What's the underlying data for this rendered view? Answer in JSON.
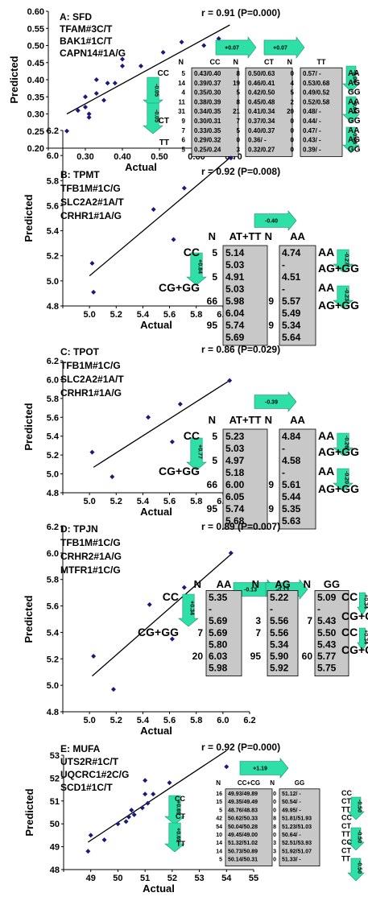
{
  "chart_data": [
    {
      "type": "scatter",
      "annotation": [
        "A: SFD",
        "TFAM#3C/T",
        "BAK1#1C/T",
        "CAPN14#1A/G"
      ],
      "stat": "r = 0.91 (P=0.000)",
      "xlabel": "Actual",
      "ylabel": "Predicted",
      "xlim": [
        0.2,
        0.7
      ],
      "ylim": [
        0.2,
        0.6
      ],
      "xticks": [
        "",
        "0.30",
        "0.40",
        "0.50",
        "0.60",
        "0.70"
      ],
      "yticks": [
        "0.20",
        "0.25",
        "0.30",
        "0.35",
        "0.40",
        "0.45",
        "0.50",
        "0.55",
        "0.60"
      ],
      "x": [
        0.25,
        0.28,
        0.3,
        0.3,
        0.31,
        0.31,
        0.33,
        0.33,
        0.35,
        0.36,
        0.38,
        0.4,
        0.4,
        0.45,
        0.51,
        0.56,
        0.62,
        0.66
      ],
      "y": [
        0.25,
        0.31,
        0.35,
        0.32,
        0.29,
        0.3,
        0.36,
        0.4,
        0.34,
        0.39,
        0.39,
        0.44,
        0.46,
        0.44,
        0.48,
        0.51,
        0.5,
        0.52
      ],
      "fit": [
        [
          0.25,
          0.3
        ],
        [
          0.69,
          0.56
        ]
      ],
      "arrows_top": [
        "+0.07",
        "+0.07"
      ],
      "arrows_left": [
        "-0.05",
        "-0.05"
      ],
      "arrows_right": [
        "-0.04",
        "-0.04",
        "-0.04"
      ],
      "table": {
        "groups": [
          {
            "header": "CC",
            "n": [
              "5",
              "14",
              "4",
              "11",
              "31",
              "9",
              "7",
              "6",
              "5"
            ],
            "values": [
              "0.43/0.40",
              "0.39/0.37",
              "0.35/0.30",
              "0.38/0.39",
              "0.34/0.35",
              "0.30/0.31",
              "0.33/0.35",
              "0.29/0.32",
              "0.25/0.24"
            ]
          },
          {
            "header": "CT",
            "n": [
              "8",
              "19",
              "5",
              "8",
              "21",
              "7",
              "5",
              "0",
              "3"
            ],
            "values": [
              "0.50/0.63",
              "0.46/0.41",
              "0.42/0.50",
              "0.45/0.48",
              "0.41/0.34",
              "0.37/0.34",
              "0.40/0.37",
              "0.36/ -",
              "0.32/0.27"
            ]
          },
          {
            "header": "TT",
            "n": [
              "0",
              "4",
              "5",
              "2",
              "20",
              "0",
              "0",
              "0",
              "0"
            ],
            "values": [
              "0.57/ -",
              "0.53/0.68",
              "0.49/0.52",
              "0.52/0.58",
              "0.48/ -",
              "0.44/ -",
              "0.47/ -",
              "0.43/ -",
              "0.39/ -"
            ]
          }
        ],
        "left_labels": [
          "CC",
          "CT",
          "TT"
        ],
        "right_labels": [
          "AA",
          "AG",
          "GG",
          "AA",
          "AG",
          "GG",
          "AA",
          "AG",
          "GG"
        ]
      }
    },
    {
      "type": "scatter",
      "annotation": [
        "B: TPMT",
        "TFB1M#1C/G",
        "SLC2A2#1A/T",
        "CRHR1#1A/G"
      ],
      "stat": "r = 0.92 (P=0.008)",
      "xlabel": "Actual",
      "ylabel": "Predicted",
      "xlim": [
        4.8,
        6.2
      ],
      "ylim": [
        4.8,
        6.2
      ],
      "xticks": [
        "",
        "5.0",
        "5.2",
        "5.4",
        "5.6",
        "5.8",
        "6.0",
        "6.2"
      ],
      "yticks": [
        "4.8",
        "5.0",
        "5.2",
        "5.4",
        "5.6",
        "5.8",
        "6.0",
        "6.2"
      ],
      "x": [
        5.02,
        5.03,
        5.48,
        5.63,
        5.71,
        6.06
      ],
      "y": [
        5.14,
        4.91,
        5.57,
        5.33,
        5.74,
        5.98
      ],
      "fit": [
        [
          5.0,
          5.04
        ],
        [
          6.05,
          5.98
        ]
      ],
      "arrows_top": [
        "-0.40"
      ],
      "arrows_left": [
        "+0.84"
      ],
      "arrows_right": [
        "-0.27",
        "-0.23"
      ],
      "table": {
        "groups": [
          {
            "header": "AT+TT",
            "n": [
              "5",
              "",
              "5",
              "",
              "66",
              "",
              "95",
              ""
            ],
            "values": [
              "5.14",
              "5.03",
              "4.91",
              "5.03",
              "5.98",
              "6.04",
              "5.74",
              "5.69"
            ]
          },
          {
            "header": "AA",
            "n": [
              "",
              "",
              "",
              "",
              "9",
              "",
              "9",
              ""
            ],
            "values": [
              "4.74",
              "-",
              "4.51",
              "-",
              "5.57",
              "5.49",
              "5.34",
              "5.64"
            ]
          }
        ],
        "left_labels": [
          "CC",
          "CG+GG"
        ],
        "right_labels": [
          "AA",
          "AG+GG",
          "AA",
          "AG+GG"
        ]
      }
    },
    {
      "type": "scatter",
      "annotation": [
        "C: TPOT",
        "TFB1M#1C/G",
        "SLC2A2#1A/T",
        "CRHR1#1A/G"
      ],
      "stat": "r = 0.86 (P=0.029)",
      "xlabel": "Actual",
      "ylabel": "Predicted",
      "xlim": [
        4.8,
        6.2
      ],
      "ylim": [
        4.8,
        6.2
      ],
      "xticks": [
        "",
        "5.0",
        "5.2",
        "5.4",
        "5.6",
        "5.8",
        "6.0",
        "6.2"
      ],
      "yticks": [
        "4.8",
        "5.0",
        "5.2",
        "5.4",
        "5.6",
        "5.8",
        "6.0",
        "6.2"
      ],
      "x": [
        5.02,
        5.17,
        5.44,
        5.62,
        5.68,
        6.05
      ],
      "y": [
        5.23,
        4.97,
        5.6,
        5.34,
        5.74,
        5.99
      ],
      "fit": [
        [
          5.03,
          5.07
        ],
        [
          6.05,
          5.99
        ]
      ],
      "arrows_top": [
        "-0.39"
      ],
      "arrows_left": [
        "+0.77"
      ],
      "arrows_right": [
        "-0.26",
        "-0.20"
      ],
      "table": {
        "groups": [
          {
            "header": "AT+TT",
            "n": [
              "5",
              "",
              "5",
              "",
              "66",
              "",
              "95",
              ""
            ],
            "values": [
              "5.23",
              "5.03",
              "4.97",
              "5.18",
              "6.00",
              "6.05",
              "5.74",
              "5.68"
            ]
          },
          {
            "header": "AA",
            "n": [
              "",
              "",
              "",
              "",
              "9",
              "",
              "9",
              ""
            ],
            "values": [
              "4.84",
              "-",
              "4.58",
              "-",
              "5.61",
              "5.44",
              "5.35",
              "5.63"
            ]
          }
        ],
        "left_labels": [
          "CC",
          "CG+GG"
        ],
        "right_labels": [
          "AA",
          "AG+GG",
          "AA",
          "AG+GG"
        ]
      }
    },
    {
      "type": "scatter",
      "annotation": [
        "D: TPJN",
        "TFB1M#1C/G",
        "CRHR2#1A/G",
        "MTFR1#1C/G"
      ],
      "stat": "r = 0.89 (P=0.007)",
      "xlabel": "Actual",
      "ylabel": "Predicted",
      "xlim": [
        4.8,
        6.2
      ],
      "ylim": [
        4.8,
        6.2
      ],
      "xticks": [
        "",
        "5.0",
        "5.2",
        "5.4",
        "5.6",
        "5.8",
        "6.0",
        "6.2"
      ],
      "yticks": [
        "4.8",
        "5.0",
        "5.2",
        "5.4",
        "5.6",
        "5.8",
        "6.0",
        "6.2"
      ],
      "x": [
        5.03,
        5.18,
        5.45,
        5.62,
        5.71,
        6.06
      ],
      "y": [
        5.22,
        4.97,
        5.61,
        5.35,
        5.74,
        6.0
      ],
      "fit": [
        [
          5.02,
          5.07
        ],
        [
          6.06,
          5.99
        ]
      ],
      "arrows_top": [
        "-0.13",
        "-0.13"
      ],
      "arrows_left": [
        "+0.34"
      ],
      "arrows_right": [
        "+0.34",
        "+0.34"
      ],
      "table": {
        "groups": [
          {
            "header": "AA",
            "n": [
              "",
              "",
              "",
              "7",
              "",
              "20",
              ""
            ],
            "values": [
              "5.35",
              "-",
              "5.69",
              "5.69",
              "5.80",
              "6.03",
              "5.98"
            ]
          },
          {
            "header": "AG",
            "n": [
              "",
              "",
              "3",
              "7",
              "",
              "95",
              ""
            ],
            "values": [
              "5.22",
              "-",
              "5.56",
              "5.56",
              "5.34",
              "5.90",
              "5.92"
            ]
          },
          {
            "header": "GG",
            "n": [
              "",
              "",
              "7",
              "",
              "",
              "60",
              ""
            ],
            "values": [
              "5.09",
              "-",
              "5.43",
              "5.50",
              "5.43",
              "5.77",
              "5.75"
            ]
          }
        ],
        "left_labels": [
          "CC",
          "CG+GG"
        ],
        "right_labels": [
          "CC",
          "CG+GG",
          "CC",
          "CG+GG"
        ]
      }
    },
    {
      "type": "scatter",
      "annotation": [
        "E: MUFA",
        "UTS2R#1C/T",
        "UQCRC1#2C/G",
        "SCD1#1C/T"
      ],
      "stat": "r = 0.92 (P=0.000)",
      "xlabel": "Actual",
      "ylabel": "Predicted",
      "xlim": [
        48,
        55
      ],
      "ylim": [
        48,
        53
      ],
      "xticks": [
        "",
        "49",
        "50",
        "51",
        "52",
        "53",
        "54",
        "55"
      ],
      "yticks": [
        "48",
        "49",
        "50",
        "51",
        "52",
        "53"
      ],
      "x": [
        48.9,
        49.0,
        49.5,
        50.0,
        50.3,
        50.4,
        50.5,
        50.6,
        50.9,
        51.0,
        51.0,
        51.1,
        51.3,
        51.9,
        54.0
      ],
      "y": [
        48.8,
        49.5,
        49.3,
        50.0,
        50.1,
        50.3,
        50.6,
        50.4,
        50.7,
        51.3,
        51.9,
        50.9,
        51.3,
        51.8,
        52.5
      ],
      "fit": [
        [
          48.9,
          49.2
        ],
        [
          54.0,
          53.2
        ]
      ],
      "arrows_top": [
        "+1.19"
      ],
      "arrows_left": [
        "+0.69",
        "+0.69"
      ],
      "arrows_right": [
        "-0.50",
        "-0.50",
        "-0.50"
      ],
      "table": {
        "groups": [
          {
            "header": "CC+CG",
            "n": [
              "16",
              "15",
              "5",
              "42",
              "54",
              "10",
              "14",
              "14",
              "5"
            ],
            "values": [
              "49.93/49.89",
              "49.35/49.49",
              "48.76/48.83",
              "50.62/50.33",
              "50.04/50.28",
              "49.45/49.00",
              "51.32/51.02",
              "50.73/50.89",
              "50.14/50.31"
            ]
          },
          {
            "header": "GG",
            "n": [
              "0",
              "0",
              "0",
              "8",
              "8",
              "0",
              "3",
              "3",
              "0"
            ],
            "values": [
              "51.12/ -",
              "50.54/ -",
              "49.95/ -",
              "51.81/51.93",
              "51.23/51.03",
              "50.64/ -",
              "52.51/53.93",
              "51.92/51.07",
              "51.33/ -"
            ]
          }
        ],
        "left_labels": [
          "CC",
          "CT",
          "TT"
        ],
        "right_labels": [
          "CC",
          "CT",
          "TT",
          "CC",
          "CT",
          "TT",
          "CC",
          "CT",
          "TT"
        ]
      }
    }
  ]
}
